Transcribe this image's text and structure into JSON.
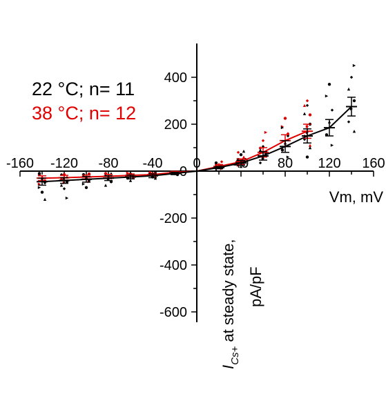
{
  "chart_data": {
    "type": "line",
    "xlabel": "Vm, mV",
    "ylabel_main": "I",
    "ylabel_sub": "Cs+",
    "ylabel_rest": " at steady state,",
    "ylabel_unit": "pA/pF",
    "xlim": [
      -160,
      160
    ],
    "ylim": [
      -600,
      500
    ],
    "x_ticks": [
      -160,
      -120,
      -80,
      -40,
      0,
      40,
      80,
      120,
      160
    ],
    "x_tick_labels": [
      "-160",
      "-120",
      "-80",
      "-40",
      "0",
      "40",
      "80",
      "120",
      "160"
    ],
    "y_ticks": [
      -600,
      -400,
      -200,
      0,
      200,
      400
    ],
    "y_tick_labels": [
      "-600",
      "-400",
      "-200",
      "0",
      "200",
      "400"
    ],
    "grid": false,
    "legend_position": "top-left",
    "series": [
      {
        "name": "22 °C; n= 11",
        "color": "#000000",
        "x": [
          -140,
          -120,
          -100,
          -80,
          -60,
          -40,
          -20,
          0,
          20,
          40,
          60,
          80,
          100,
          120,
          140
        ],
        "y": [
          -45,
          -40,
          -35,
          -30,
          -25,
          -20,
          -10,
          0,
          15,
          35,
          65,
          105,
          150,
          185,
          275
        ],
        "err": [
          15,
          12,
          12,
          10,
          8,
          8,
          5,
          0,
          5,
          10,
          18,
          25,
          30,
          35,
          40
        ],
        "scatter": [
          [
            -140,
            -10
          ],
          [
            -140,
            -30
          ],
          [
            -140,
            -50
          ],
          [
            -140,
            -70
          ],
          [
            -140,
            -90
          ],
          [
            -140,
            -120
          ],
          [
            -120,
            -15
          ],
          [
            -120,
            -30
          ],
          [
            -120,
            -45
          ],
          [
            -120,
            -60
          ],
          [
            -120,
            -75
          ],
          [
            -120,
            -115
          ],
          [
            -100,
            -15
          ],
          [
            -100,
            -25
          ],
          [
            -100,
            -40
          ],
          [
            -100,
            -55
          ],
          [
            -100,
            -70
          ],
          [
            -80,
            -10
          ],
          [
            -80,
            -20
          ],
          [
            -80,
            -35
          ],
          [
            -80,
            -45
          ],
          [
            -80,
            -60
          ],
          [
            -60,
            -10
          ],
          [
            -60,
            -20
          ],
          [
            -60,
            -30
          ],
          [
            -60,
            -40
          ],
          [
            -40,
            -5
          ],
          [
            -40,
            -15
          ],
          [
            -40,
            -25
          ],
          [
            -40,
            -30
          ],
          [
            -20,
            -5
          ],
          [
            -20,
            -10
          ],
          [
            -20,
            -15
          ],
          [
            20,
            5
          ],
          [
            20,
            15
          ],
          [
            20,
            25
          ],
          [
            20,
            35
          ],
          [
            40,
            20
          ],
          [
            40,
            35
          ],
          [
            40,
            50
          ],
          [
            40,
            70
          ],
          [
            40,
            85
          ],
          [
            60,
            35
          ],
          [
            60,
            55
          ],
          [
            60,
            75
          ],
          [
            60,
            90
          ],
          [
            60,
            105
          ],
          [
            80,
            60
          ],
          [
            80,
            90
          ],
          [
            80,
            120
          ],
          [
            80,
            150
          ],
          [
            80,
            185
          ],
          [
            100,
            60
          ],
          [
            100,
            100
          ],
          [
            100,
            135
          ],
          [
            100,
            165
          ],
          [
            100,
            200
          ],
          [
            100,
            245
          ],
          [
            100,
            280
          ],
          [
            120,
            110
          ],
          [
            120,
            155
          ],
          [
            120,
            210
          ],
          [
            120,
            260
          ],
          [
            120,
            320
          ],
          [
            120,
            370
          ],
          [
            140,
            170
          ],
          [
            140,
            210
          ],
          [
            140,
            265
          ],
          [
            140,
            300
          ],
          [
            140,
            350
          ],
          [
            140,
            400
          ],
          [
            140,
            450
          ]
        ]
      },
      {
        "name": "38 °C; n= 12",
        "color": "#e00000",
        "x": [
          -140,
          -120,
          -100,
          -80,
          -60,
          -40,
          -20,
          0,
          20,
          40,
          60,
          80,
          100
        ],
        "y": [
          -30,
          -28,
          -25,
          -22,
          -18,
          -15,
          -5,
          0,
          20,
          40,
          80,
          130,
          170
        ],
        "err": [
          10,
          10,
          8,
          8,
          6,
          6,
          4,
          0,
          8,
          12,
          20,
          25,
          30
        ],
        "scatter": [
          [
            -140,
            -15
          ],
          [
            -140,
            -25
          ],
          [
            -140,
            -40
          ],
          [
            -140,
            -55
          ],
          [
            -120,
            -15
          ],
          [
            -120,
            -25
          ],
          [
            -120,
            -35
          ],
          [
            -120,
            -50
          ],
          [
            -100,
            -12
          ],
          [
            -100,
            -20
          ],
          [
            -100,
            -30
          ],
          [
            -100,
            -45
          ],
          [
            -80,
            -10
          ],
          [
            -80,
            -20
          ],
          [
            -80,
            -30
          ],
          [
            -60,
            -8
          ],
          [
            -60,
            -15
          ],
          [
            -60,
            -25
          ],
          [
            -40,
            -5
          ],
          [
            -40,
            -12
          ],
          [
            -40,
            -20
          ],
          [
            -20,
            -3
          ],
          [
            -20,
            -8
          ],
          [
            20,
            10
          ],
          [
            20,
            20
          ],
          [
            20,
            30
          ],
          [
            20,
            40
          ],
          [
            40,
            25
          ],
          [
            40,
            45
          ],
          [
            40,
            60
          ],
          [
            40,
            80
          ],
          [
            60,
            50
          ],
          [
            60,
            75
          ],
          [
            60,
            100
          ],
          [
            60,
            130
          ],
          [
            60,
            165
          ],
          [
            80,
            90
          ],
          [
            80,
            120
          ],
          [
            80,
            160
          ],
          [
            80,
            190
          ],
          [
            80,
            225
          ],
          [
            100,
            110
          ],
          [
            100,
            150
          ],
          [
            100,
            190
          ],
          [
            100,
            240
          ],
          [
            100,
            280
          ],
          [
            100,
            300
          ]
        ]
      }
    ]
  }
}
